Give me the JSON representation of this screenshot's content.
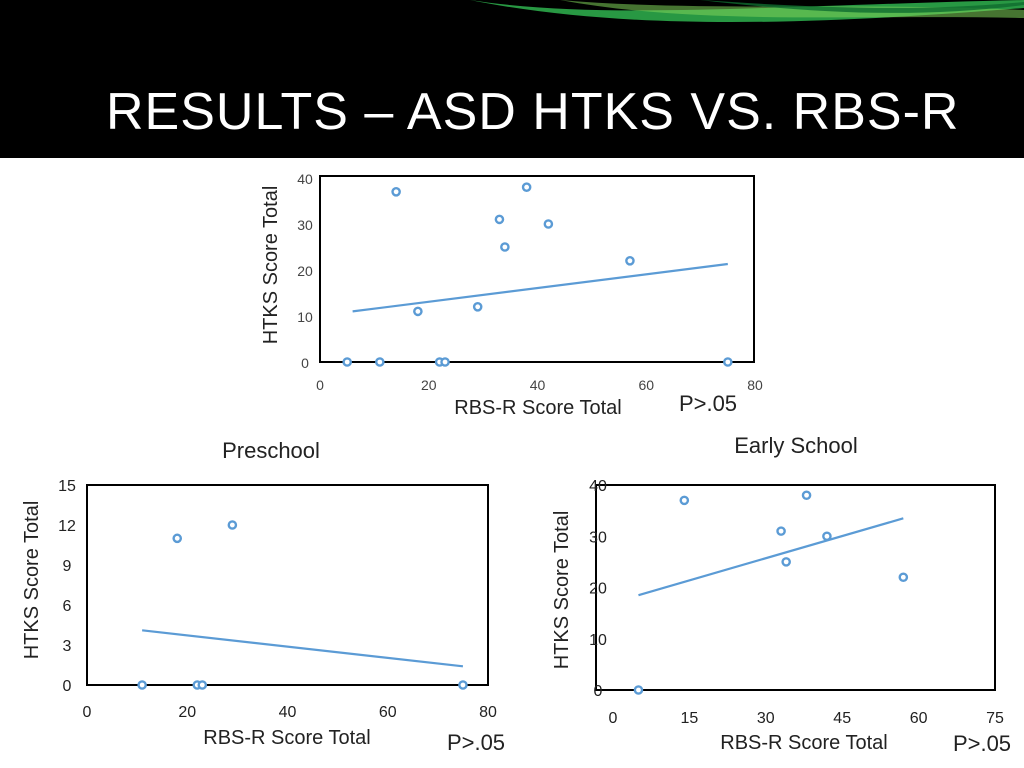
{
  "slide": {
    "title": "RESULTS – ASD HTKS VS. RBS-R",
    "banner_color": "#000000",
    "accent_color": "#2ca84a"
  },
  "colors": {
    "marker": "#5b9bd5",
    "trend": "#5b9bd5",
    "frame": "#000000"
  },
  "chart_data": [
    {
      "id": "overall",
      "type": "scatter",
      "title": "",
      "xlabel": "RBS-R Score Total",
      "ylabel": "HTKS Score Total",
      "xlim": [
        0,
        80
      ],
      "ylim": [
        0,
        40
      ],
      "xticks": [
        0,
        20,
        40,
        60,
        80
      ],
      "yticks": [
        0,
        10,
        20,
        30,
        40
      ],
      "annotation": "P>.05",
      "points": [
        [
          5,
          0
        ],
        [
          11,
          0
        ],
        [
          22,
          0
        ],
        [
          23,
          0
        ],
        [
          75,
          0
        ],
        [
          14,
          37
        ],
        [
          18,
          11
        ],
        [
          29,
          12
        ],
        [
          33,
          31
        ],
        [
          34,
          25
        ],
        [
          38,
          38
        ],
        [
          42,
          30
        ],
        [
          57,
          22
        ]
      ],
      "trend": [
        [
          6,
          11
        ],
        [
          75,
          21.3
        ]
      ]
    },
    {
      "id": "preschool",
      "type": "scatter",
      "title": "Preschool",
      "xlabel": "RBS-R Score Total",
      "ylabel": "HTKS Score Total",
      "xlim": [
        0,
        80
      ],
      "ylim": [
        0,
        15
      ],
      "xticks": [
        0,
        20,
        40,
        60,
        80
      ],
      "yticks": [
        0,
        3,
        6,
        9,
        12,
        15
      ],
      "annotation": "P>.05",
      "points": [
        [
          11,
          0
        ],
        [
          22,
          0
        ],
        [
          23,
          0
        ],
        [
          75,
          0
        ],
        [
          18,
          11
        ],
        [
          29,
          12
        ]
      ],
      "trend": [
        [
          11,
          4.1
        ],
        [
          75,
          1.4
        ]
      ]
    },
    {
      "id": "early-school",
      "type": "scatter",
      "title": "Early School",
      "xlabel": "RBS-R Score Total",
      "ylabel": "HTKS Score Total",
      "xlim": [
        0,
        75
      ],
      "ylim": [
        0,
        40
      ],
      "xticks": [
        0,
        15,
        30,
        45,
        60,
        75
      ],
      "yticks": [
        0,
        10,
        20,
        30,
        40
      ],
      "annotation": "P>.05",
      "points": [
        [
          5,
          0
        ],
        [
          14,
          37
        ],
        [
          33,
          31
        ],
        [
          34,
          25
        ],
        [
          38,
          38
        ],
        [
          42,
          30
        ],
        [
          57,
          22
        ]
      ],
      "trend": [
        [
          5,
          18.5
        ],
        [
          57,
          33.5
        ]
      ]
    }
  ]
}
